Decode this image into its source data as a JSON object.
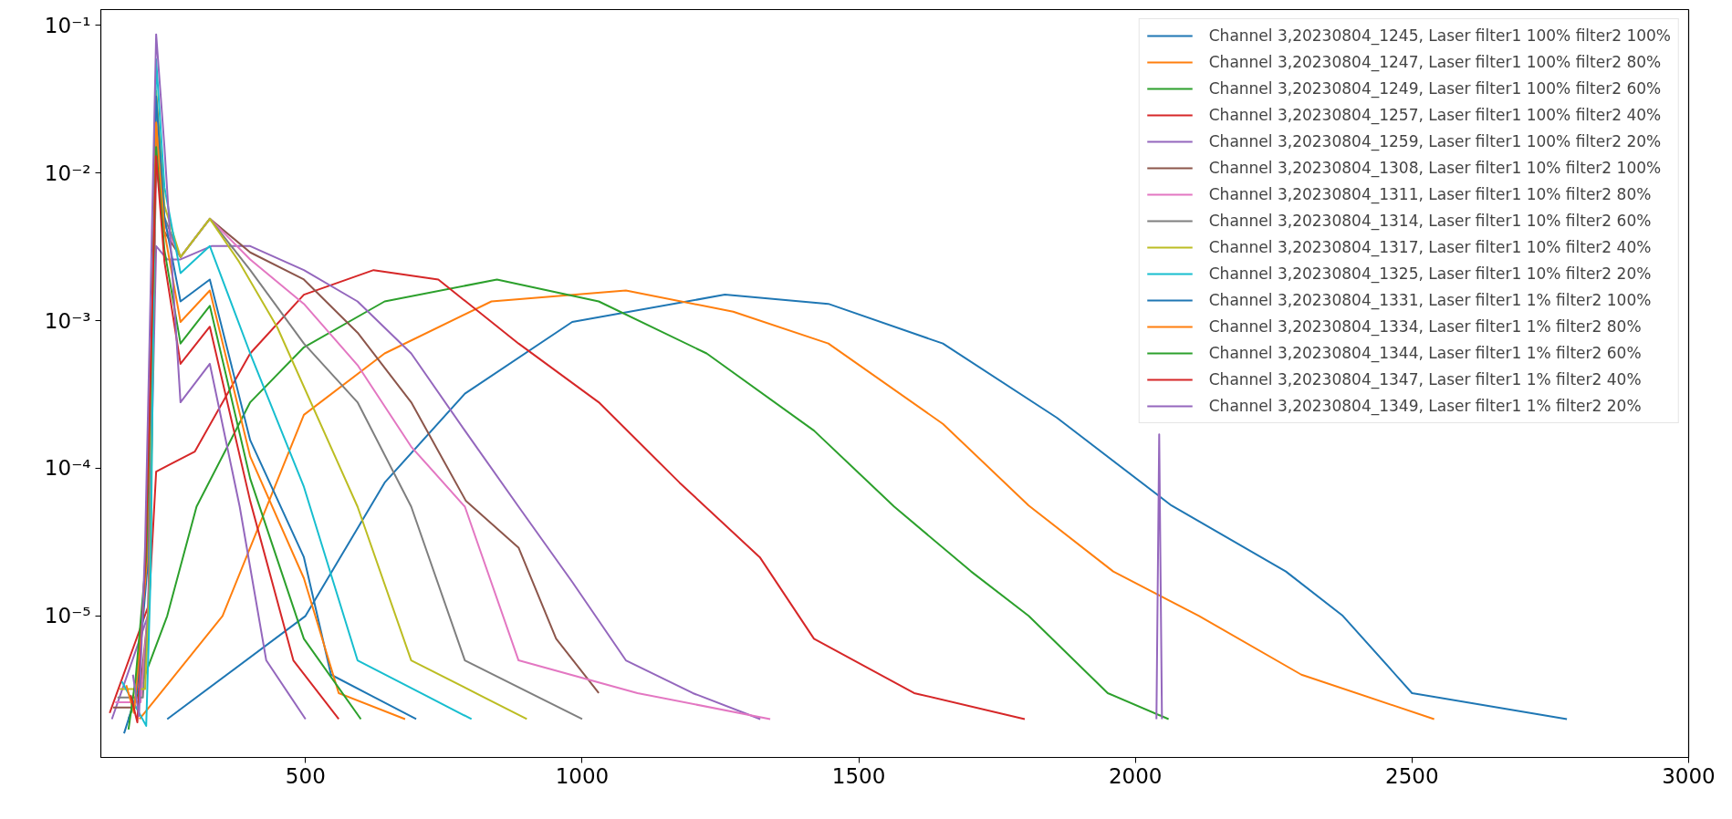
{
  "chart_data": {
    "type": "line",
    "xlim": [
      130,
      3000
    ],
    "ylim": [
      1.1e-06,
      0.128
    ],
    "log": "y",
    "xticks": [
      500,
      1000,
      1500,
      2000,
      2500,
      3000
    ],
    "yticks": [
      {
        "value": 1e-05,
        "label": "10⁻⁵"
      },
      {
        "value": 0.0001,
        "label": "10⁻⁴"
      },
      {
        "value": 0.001,
        "label": "10⁻³"
      },
      {
        "value": 0.01,
        "label": "10⁻²"
      },
      {
        "value": 0.1,
        "label": "10⁻¹"
      }
    ],
    "grid": false,
    "legend": "top right",
    "marker": "none",
    "line_style": "solid",
    "series": [
      {
        "name": "Channel 3,20230804_1245, Laser filter1 100% filter2 100%",
        "color": "#1f77b4",
        "x": [
          250,
          500,
          643,
          788,
          982,
          1258,
          1445,
          1652,
          1858,
          2065,
          2272,
          2375,
          2500,
          2780
        ],
        "values": [
          2e-06,
          1e-05,
          8e-05,
          0.00032,
          0.00098,
          0.0015,
          0.0013,
          0.0007,
          0.00022,
          5.6e-05,
          2e-05,
          1e-05,
          3e-06,
          2e-06
        ]
      },
      {
        "name": "Channel 3,20230804_1247, Laser filter1 100% filter2 80%",
        "color": "#ff7f0e",
        "x": [
          200,
          350,
          497,
          643,
          836,
          1079,
          1273,
          1445,
          1652,
          1807,
          1960,
          2115,
          2300,
          2540
        ],
        "values": [
          2e-06,
          1e-05,
          0.00023,
          0.0006,
          0.00135,
          0.0016,
          0.00115,
          0.0007,
          0.0002,
          5.6e-05,
          2e-05,
          1e-05,
          4e-06,
          2e-06
        ]
      },
      {
        "name": "Channel 3,20230804_1249, Laser filter1 100% filter2 60%",
        "color": "#2ca02c",
        "x": [
          180,
          250,
          303,
          400,
          497,
          643,
          846,
          1030,
          1225,
          1419,
          1564,
          1703,
          1807,
          1950,
          2060
        ],
        "values": [
          2e-06,
          1e-05,
          5.5e-05,
          0.00028,
          0.00066,
          0.00135,
          0.0019,
          0.00135,
          0.0006,
          0.00018,
          5.5e-05,
          2e-05,
          1e-05,
          3e-06,
          2e-06
        ]
      },
      {
        "name": "Channel 3,20230804_1257, Laser filter1 100% filter2 40%",
        "color": "#d62728",
        "x": [
          146,
          217,
          230,
          300,
          400,
          497,
          623,
          740,
          885,
          1030,
          1176,
          1321,
          1419,
          1600,
          1800
        ],
        "values": [
          2.2e-06,
          1.2e-05,
          9.5e-05,
          0.00013,
          0.0006,
          0.0015,
          0.0022,
          0.0019,
          0.0007,
          0.00028,
          8e-05,
          2.5e-05,
          7e-06,
          3e-06,
          2e-06
        ]
      },
      {
        "name": "Channel 3,20230804_1259, Laser filter1 100% filter2 20%",
        "color": "#9467bd",
        "x": [
          150,
          215,
          230,
          250,
          274,
          330,
          400,
          497,
          594,
          691,
          788,
          885,
          982,
          1079,
          1200,
          1322,
          1330,
          2038,
          2043,
          2048
        ],
        "values": [
          2e-06,
          1e-05,
          0.0032,
          0.0026,
          0.0026,
          0.0032,
          0.0032,
          0.0022,
          0.00135,
          0.0006,
          0.00018,
          5.5e-05,
          1.7e-05,
          5e-06,
          3e-06,
          2e-06,
          null,
          2e-06,
          0.00017,
          2e-06
        ]
      },
      {
        "name": "Channel 3,20230804_1308, Laser filter1 10% filter2 100%",
        "color": "#8c564b",
        "x": [
          152,
          198,
          216,
          230,
          245,
          274,
          327,
          400,
          497,
          594,
          691,
          790,
          885,
          953,
          1030
        ],
        "values": [
          2.4e-06,
          2.4e-06,
          1.1e-05,
          0.012,
          0.004,
          0.0027,
          0.0049,
          0.0029,
          0.0019,
          0.00083,
          0.00028,
          6e-05,
          2.9e-05,
          7e-06,
          3e-06
        ]
      },
      {
        "name": "Channel 3,20230804_1311, Laser filter1 10% filter2 80%",
        "color": "#e377c2",
        "x": [
          156,
          202,
          217,
          230,
          245,
          274,
          327,
          400,
          497,
          594,
          691,
          788,
          885,
          1100,
          1340
        ],
        "values": [
          2.6e-06,
          2.6e-06,
          1.3e-05,
          0.016,
          0.0045,
          0.0027,
          0.0049,
          0.0026,
          0.0013,
          0.0005,
          0.00014,
          5.5e-05,
          5e-06,
          3e-06,
          2e-06
        ]
      },
      {
        "name": "Channel 3,20230804_1314, Laser filter1 10% filter2 60%",
        "color": "#7f7f7f",
        "x": [
          160,
          206,
          218,
          230,
          245,
          274,
          327,
          400,
          497,
          594,
          691,
          788,
          1000
        ],
        "values": [
          2.8e-06,
          2.8e-06,
          1.5e-05,
          0.022,
          0.005,
          0.0027,
          0.0049,
          0.0022,
          0.0007,
          0.00028,
          5.5e-05,
          5e-06,
          2e-06
        ]
      },
      {
        "name": "Channel 3,20230804_1317, Laser filter1 10% filter2 40%",
        "color": "#bcbd22",
        "x": [
          164,
          210,
          219,
          230,
          245,
          274,
          327,
          380,
          449,
          594,
          691,
          900
        ],
        "values": [
          3.2e-06,
          3.2e-06,
          1.7e-05,
          0.036,
          0.006,
          0.0027,
          0.0049,
          0.0025,
          0.0009,
          5.5e-05,
          5e-06,
          2e-06
        ]
      },
      {
        "name": "Channel 3,20230804_1325, Laser filter1 10% filter2 20%",
        "color": "#17becf",
        "x": [
          168,
          212,
          220,
          230,
          245,
          274,
          327,
          400,
          497,
          594,
          800
        ],
        "values": [
          3.6e-06,
          1.8e-06,
          1.9e-05,
          0.059,
          0.008,
          0.0021,
          0.0032,
          0.0006,
          7.5e-05,
          5e-06,
          2e-06
        ]
      },
      {
        "name": "Channel 3,20230804_1331, Laser filter1 1% filter2 100%",
        "color": "#1f77b4",
        "x": [
          172,
          195,
          214,
          230,
          245,
          274,
          327,
          400,
          497,
          546,
          700
        ],
        "values": [
          1.6e-06,
          3e-06,
          2.1e-05,
          0.033,
          0.005,
          0.00135,
          0.0019,
          0.000155,
          2.5e-05,
          4e-06,
          2e-06
        ]
      },
      {
        "name": "Channel 3,20230804_1334, Laser filter1 1% filter2 80%",
        "color": "#ff7f0e",
        "x": [
          176,
          190,
          213,
          230,
          245,
          274,
          327,
          400,
          497,
          560,
          680
        ],
        "values": [
          3.4e-06,
          2.2e-06,
          2.3e-05,
          0.022,
          0.004,
          0.00098,
          0.0016,
          0.00012,
          1.8e-05,
          3e-06,
          2e-06
        ]
      },
      {
        "name": "Channel 3,20230804_1344, Laser filter1 1% filter2 60%",
        "color": "#2ca02c",
        "x": [
          180,
          193,
          212,
          230,
          245,
          274,
          327,
          400,
          497,
          600
        ],
        "values": [
          1.7e-06,
          3.8e-06,
          2.5e-05,
          0.015,
          0.003,
          0.0007,
          0.00126,
          8.5e-05,
          7e-06,
          2e-06
        ]
      },
      {
        "name": "Channel 3,20230804_1347, Laser filter1 1% filter2 40%",
        "color": "#d62728",
        "x": [
          184,
          196,
          211,
          230,
          245,
          274,
          327,
          400,
          478,
          560
        ],
        "values": [
          2.9e-06,
          1.9e-06,
          2.7e-05,
          0.013,
          0.0025,
          0.00051,
          0.00091,
          6e-05,
          5e-06,
          2e-06
        ]
      },
      {
        "name": "Channel 3,20230804_1349, Laser filter1 1% filter2 20%",
        "color": "#9467bd",
        "x": [
          188,
          199,
          210,
          230,
          245,
          274,
          327,
          381,
          429,
          500
        ],
        "values": [
          4e-06,
          2.1e-06,
          3e-05,
          0.087,
          0.015,
          0.00028,
          0.00051,
          5.5e-05,
          5e-06,
          2e-06
        ]
      }
    ]
  }
}
